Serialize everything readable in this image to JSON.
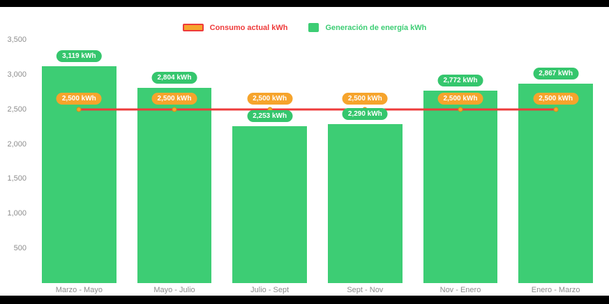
{
  "chart_data": {
    "type": "bar",
    "title": "",
    "categories": [
      "Marzo - Mayo",
      "Mayo - Julio",
      "Julio - Sept",
      "Sept - Nov",
      "Nov - Enero",
      "Enero - Marzo"
    ],
    "series": [
      {
        "name": "Consumo actual kWh",
        "type": "line",
        "color": "#ee3a3a",
        "marker_color": "#f6a42c",
        "values": [
          2500,
          2500,
          2500,
          2500,
          2500,
          2500
        ],
        "labels": [
          "2,500 kWh",
          "2,500 kWh",
          "2,500 kWh",
          "2,500 kWh",
          "2,500 kWh",
          "2,500 kWh"
        ]
      },
      {
        "name": "Generación de energía kWh",
        "type": "bar",
        "color": "#3dcd74",
        "label_color": "#35c66d",
        "values": [
          3119,
          2804,
          2253,
          2290,
          2772,
          2867
        ],
        "labels": [
          "3,119 kWh",
          "2,804 kWh",
          "2,253 kWh",
          "2,290 kWh",
          "2,772 kWh",
          "2,867 kWh"
        ]
      }
    ],
    "ylim": [
      0,
      3500
    ],
    "ytick_values": [
      500,
      1000,
      1500,
      2000,
      2500,
      3000,
      3500
    ],
    "yticks": [
      "500",
      "1,000",
      "1,500",
      "2,000",
      "2,500",
      "3,000",
      "3,500"
    ],
    "xlabel": "",
    "ylabel": "",
    "grid": false,
    "legend_position": "top"
  }
}
